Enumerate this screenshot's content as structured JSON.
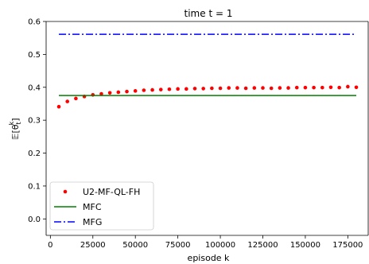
{
  "chart_data": {
    "type": "line",
    "title": "time t = 1",
    "xlabel": "episode k",
    "ylabel": "E[θ_t^k]",
    "ylabel_parts": {
      "main": "𝔼[θ",
      "sub": "t",
      "sup": "k",
      "close": "]"
    },
    "xlim": [
      -2500,
      187000
    ],
    "ylim": [
      -0.05,
      0.6
    ],
    "xticks": [
      0,
      25000,
      50000,
      75000,
      100000,
      125000,
      150000,
      175000
    ],
    "yticks": [
      0.0,
      0.1,
      0.2,
      0.3,
      0.4,
      0.5,
      0.6
    ],
    "grid": false,
    "legend_position": "lower-left",
    "series": [
      {
        "name": "U2-MF-QL-FH",
        "style": "dots",
        "color": "#ff0000",
        "x": [
          5000,
          10000,
          15000,
          20000,
          25000,
          30000,
          35000,
          40000,
          45000,
          50000,
          55000,
          60000,
          65000,
          70000,
          75000,
          80000,
          85000,
          90000,
          95000,
          100000,
          105000,
          110000,
          115000,
          120000,
          125000,
          130000,
          135000,
          140000,
          145000,
          150000,
          155000,
          160000,
          165000,
          170000,
          175000,
          180000
        ],
        "y": [
          0.341,
          0.357,
          0.366,
          0.372,
          0.377,
          0.38,
          0.383,
          0.385,
          0.387,
          0.389,
          0.391,
          0.392,
          0.393,
          0.394,
          0.395,
          0.395,
          0.396,
          0.396,
          0.397,
          0.397,
          0.398,
          0.398,
          0.397,
          0.398,
          0.398,
          0.397,
          0.398,
          0.398,
          0.399,
          0.399,
          0.399,
          0.399,
          0.4,
          0.399,
          0.402,
          0.4
        ]
      },
      {
        "name": "MFC",
        "style": "solid",
        "color": "#008000",
        "x": [
          5000,
          180000
        ],
        "y": [
          0.375,
          0.375
        ]
      },
      {
        "name": "MFG",
        "style": "dashdot",
        "color": "#0000ff",
        "x": [
          5000,
          180000
        ],
        "y": [
          0.561,
          0.561
        ]
      }
    ]
  }
}
